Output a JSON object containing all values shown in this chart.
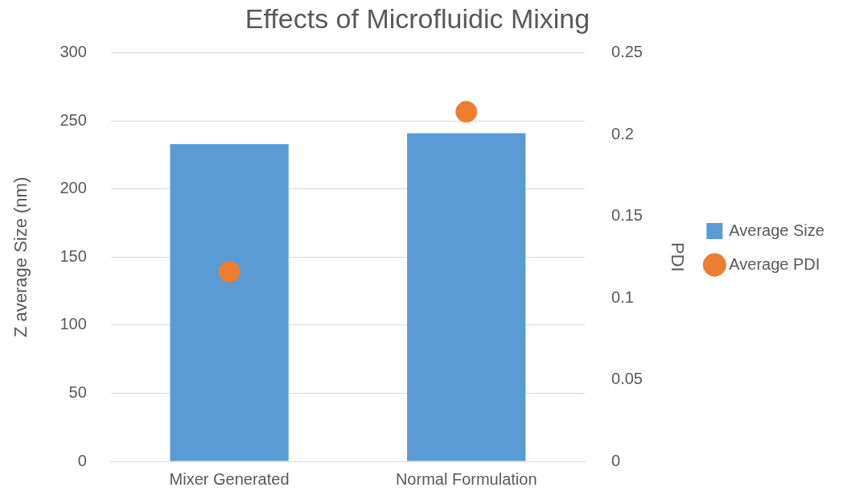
{
  "chart_data": {
    "type": "bar",
    "title": "Effects of Microfluidic Mixing",
    "ylabel": "Z average Size (nm)",
    "y2label": "PDI",
    "categories": [
      "Mixer Generated",
      "Normal Formulation"
    ],
    "series": [
      {
        "name": "Average Size",
        "color": "#5b9bd5",
        "values": [
          233,
          241
        ]
      },
      {
        "name": "Average PDI",
        "type": "scatter",
        "axis": "y2",
        "color": "#ed7d31",
        "x": [
          "Mixer Generated",
          "Normal Formulation"
        ],
        "values": [
          0.116,
          0.214
        ]
      }
    ],
    "ylim": [
      0,
      300
    ],
    "yticks": [
      0,
      50,
      100,
      150,
      200,
      250,
      300
    ],
    "y2lim": [
      0,
      0.25
    ],
    "y2ticks": [
      0,
      0.05,
      0.1,
      0.15,
      0.2,
      0.25
    ],
    "grid": "y",
    "legend": "right",
    "marker": "circle"
  }
}
